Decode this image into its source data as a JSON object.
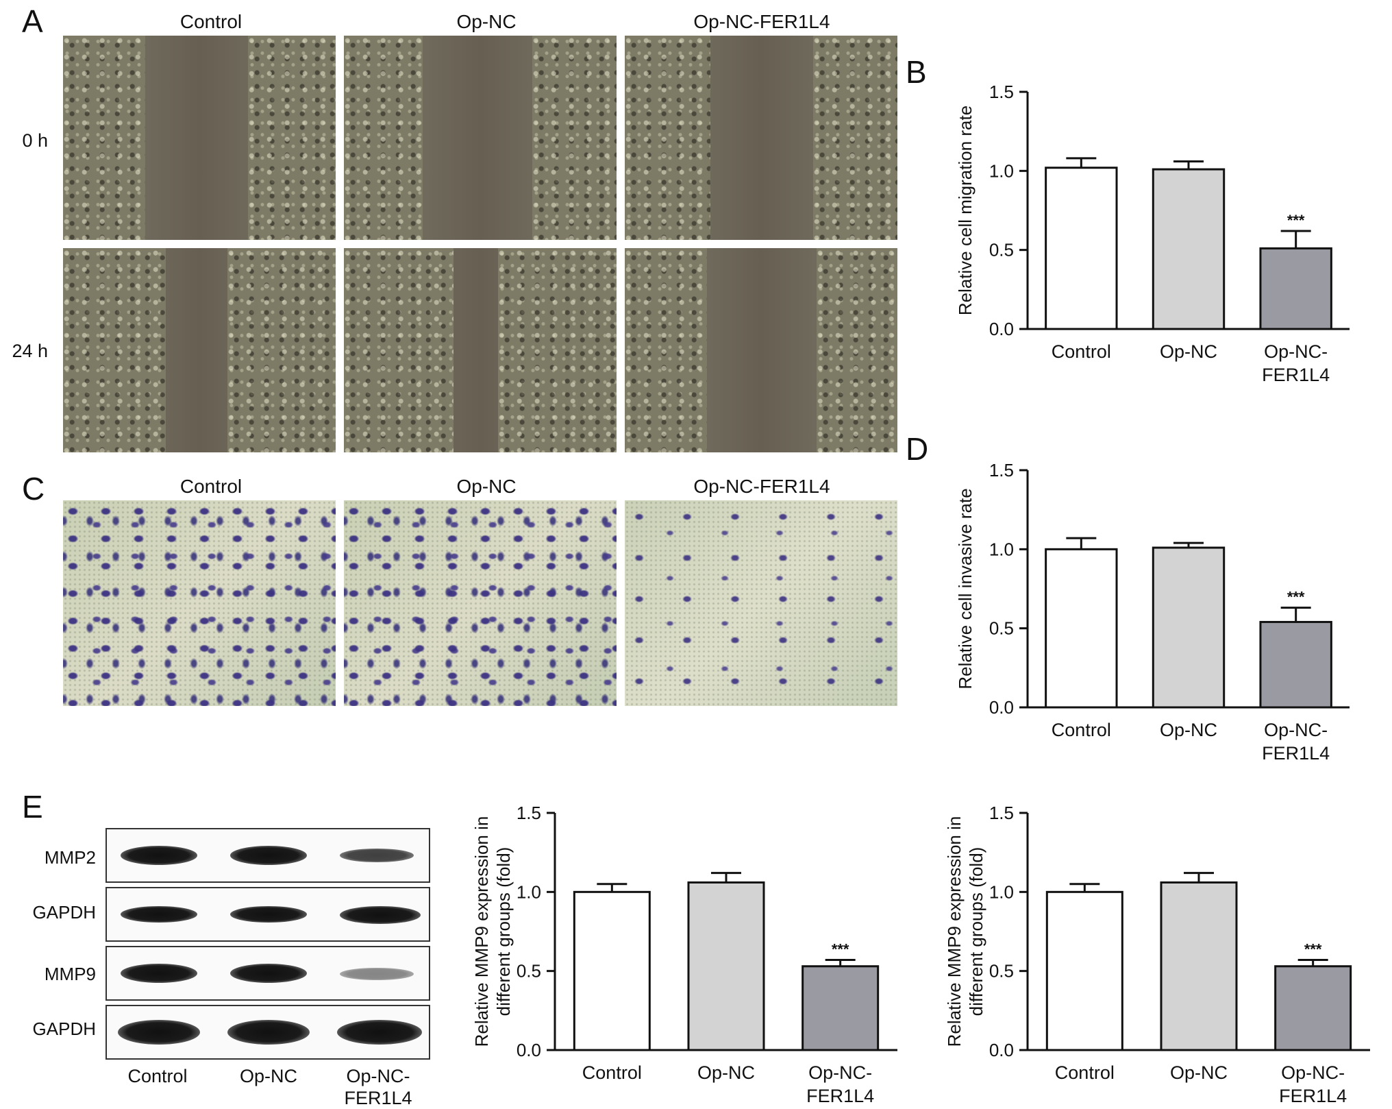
{
  "panels": {
    "A": {
      "letter": "A",
      "columns": [
        "Control",
        "Op-NC",
        "Op-NC-FER1L4"
      ],
      "rows": [
        "0 h",
        "24 h"
      ]
    },
    "B": {
      "letter": "B"
    },
    "C": {
      "letter": "C",
      "columns": [
        "Control",
        "Op-NC",
        "Op-NC-FER1L4"
      ]
    },
    "D": {
      "letter": "D"
    },
    "E": {
      "letter": "E",
      "blot_rows": [
        "MMP2",
        "GAPDH",
        "MMP9",
        "GAPDH"
      ],
      "blot_columns": [
        "Control",
        "Op-NC",
        "Op-NC-\nFER1L4"
      ]
    }
  },
  "colors": {
    "bar_control": "#ffffff",
    "bar_opnc": "#d3d3d3",
    "bar_fer1l4": "#9a9aa2",
    "stroke": "#111111"
  },
  "chart_data": [
    {
      "id": "B",
      "type": "bar",
      "categories": [
        "Control",
        "Op-NC",
        "Op-NC-\nFER1L4"
      ],
      "values": [
        1.02,
        1.01,
        0.51
      ],
      "errors": [
        0.06,
        0.05,
        0.11
      ],
      "significance": [
        "",
        "",
        "***"
      ],
      "ylabel": [
        "Relative cell migration rate"
      ],
      "ylim": [
        0,
        1.5
      ],
      "yticks": [
        "0.0",
        "0.5",
        "1.0",
        "1.5"
      ]
    },
    {
      "id": "D",
      "type": "bar",
      "categories": [
        "Control",
        "Op-NC",
        "Op-NC-\nFER1L4"
      ],
      "values": [
        1.0,
        1.01,
        0.54
      ],
      "errors": [
        0.07,
        0.03,
        0.09
      ],
      "significance": [
        "",
        "",
        "***"
      ],
      "ylabel": [
        "Relative cell invasive rate"
      ],
      "ylim": [
        0,
        1.5
      ],
      "yticks": [
        "0.0",
        "0.5",
        "1.0",
        "1.5"
      ]
    },
    {
      "id": "E1",
      "type": "bar",
      "categories": [
        "Control",
        "Op-NC",
        "Op-NC-\nFER1L4"
      ],
      "values": [
        1.0,
        1.06,
        0.53
      ],
      "errors": [
        0.05,
        0.06,
        0.04
      ],
      "significance": [
        "",
        "",
        "***"
      ],
      "ylabel": [
        "Relative MMP9 expression in",
        "different groups (fold)"
      ],
      "ylim": [
        0,
        1.5
      ],
      "yticks": [
        "0.0",
        "0.5",
        "1.0",
        "1.5"
      ]
    },
    {
      "id": "E2",
      "type": "bar",
      "categories": [
        "Control",
        "Op-NC",
        "Op-NC-\nFER1L4"
      ],
      "values": [
        1.0,
        1.06,
        0.53
      ],
      "errors": [
        0.05,
        0.06,
        0.04
      ],
      "significance": [
        "",
        "",
        "***"
      ],
      "ylabel": [
        "Relative MMP9 expression in",
        "different groups (fold)"
      ],
      "ylim": [
        0,
        1.5
      ],
      "yticks": [
        "0.0",
        "0.5",
        "1.0",
        "1.5"
      ]
    }
  ]
}
